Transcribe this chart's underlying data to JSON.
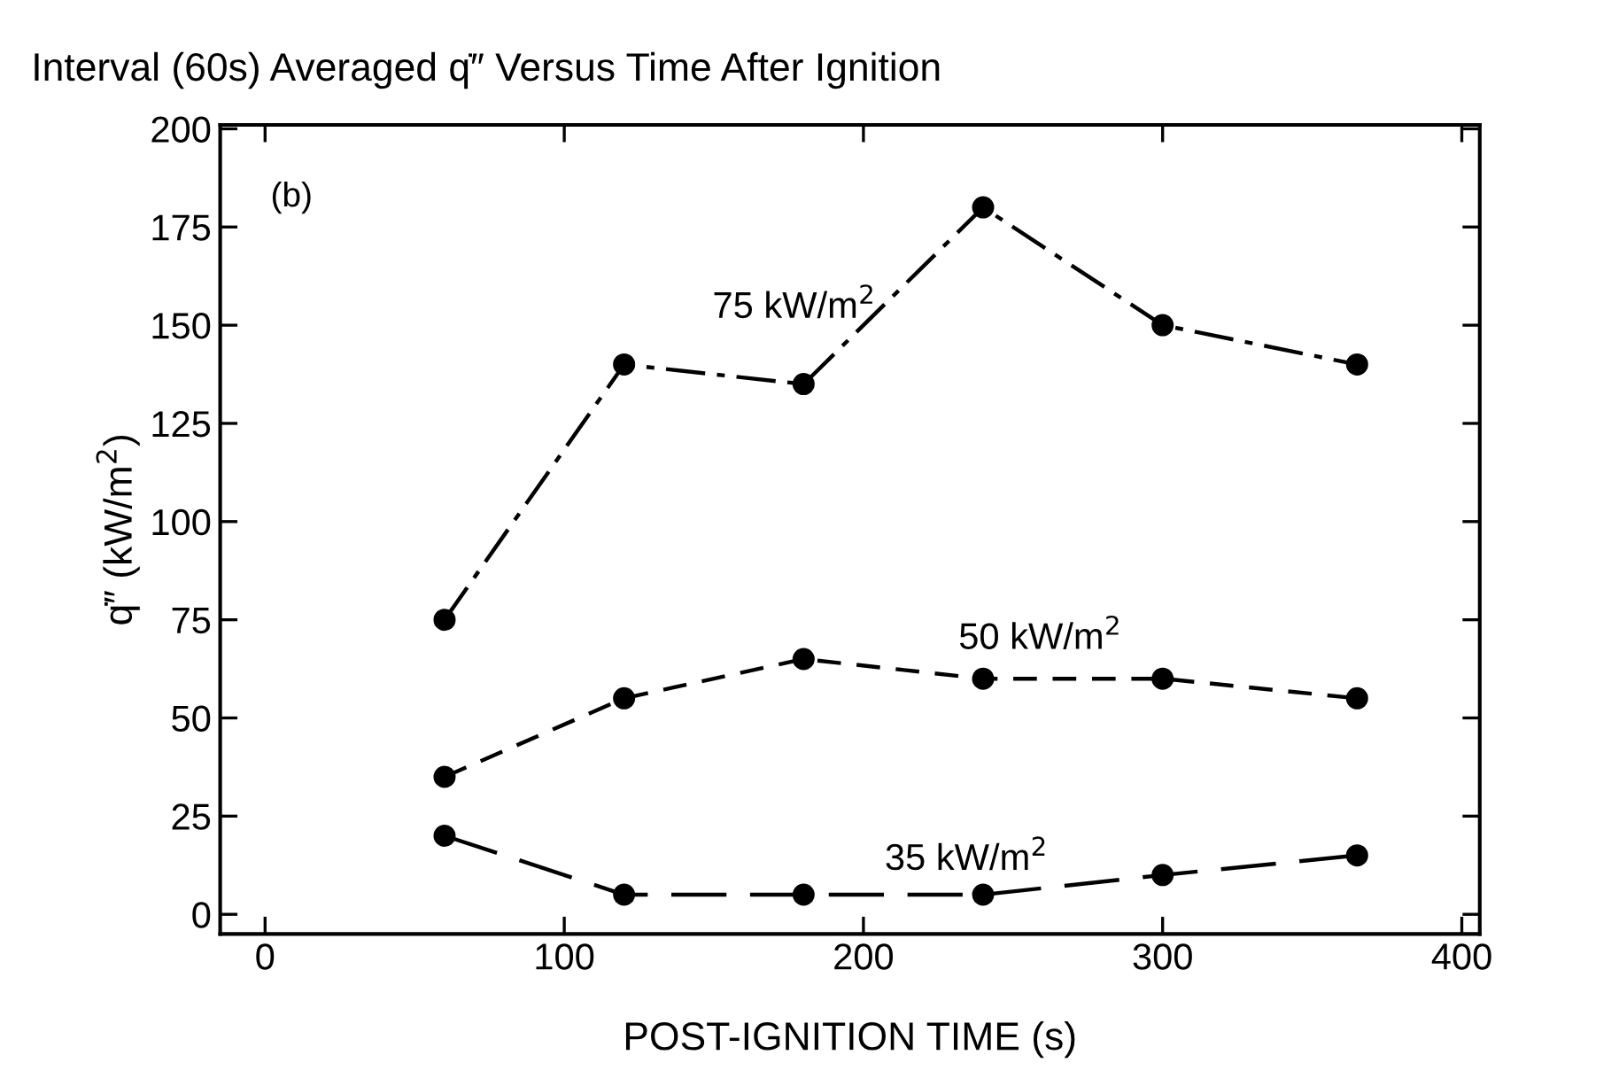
{
  "chart_data": {
    "type": "line",
    "title": "Interval (60s) Averaged q̇″ Versus Time After Ignition",
    "xlabel": "POST-IGNITION TIME (s)",
    "ylabel": "q̇″ (kW/m$^{2}$)",
    "x": [
      60,
      120,
      180,
      240,
      300,
      365
    ],
    "series": [
      {
        "name": "75 kW/m$^{2}$",
        "color": "#000000",
        "line_style": "dashdot",
        "values": [
          75,
          140,
          135,
          180,
          150,
          140
        ]
      },
      {
        "name": "50 kW/m$^{2}$",
        "color": "#000000",
        "line_style": "dashed",
        "values": [
          35,
          55,
          65,
          60,
          60,
          55
        ]
      },
      {
        "name": "35 kW/m$^{2}$",
        "color": "#000000",
        "line_style": "longdash",
        "values": [
          20,
          5,
          5,
          5,
          10,
          15
        ]
      }
    ],
    "marker": "circle",
    "xlim": [
      -15,
      406
    ],
    "ylim": [
      -5,
      201
    ],
    "xticks": [
      0,
      100,
      200,
      300,
      400
    ],
    "yticks": [
      0,
      25,
      50,
      75,
      100,
      125,
      150,
      175,
      200
    ],
    "annotations": [
      "(b)"
    ],
    "grid": false,
    "legend": false
  }
}
